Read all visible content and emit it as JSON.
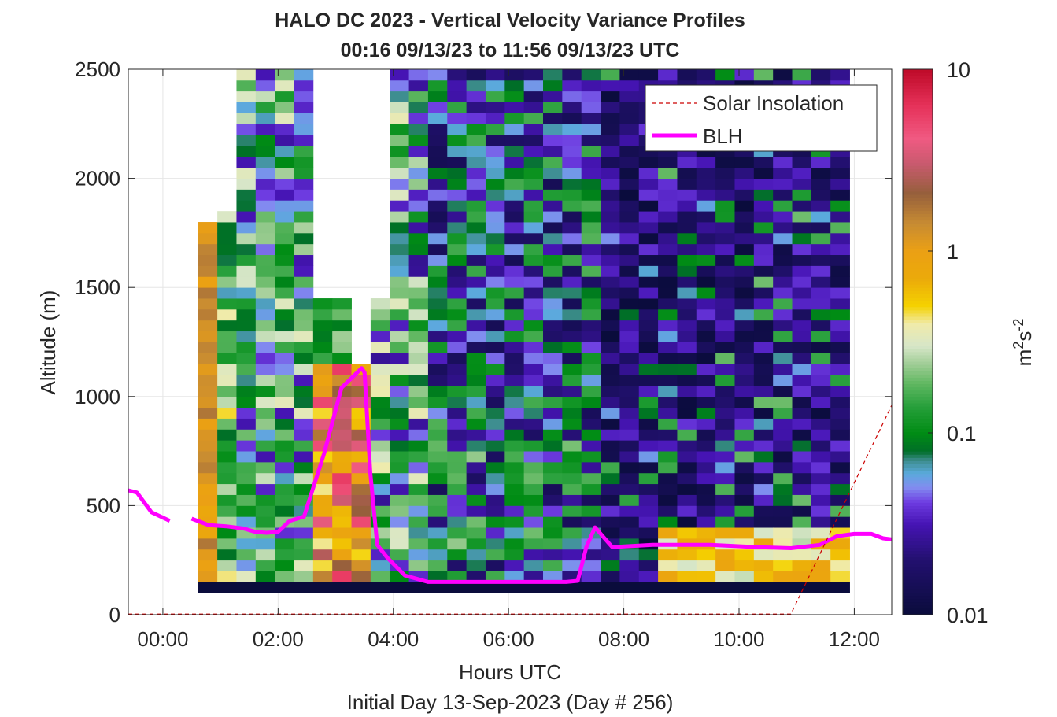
{
  "chart_data": {
    "type": "heatmap",
    "title_line1": "HALO DC 2023 - Vertical Velocity Variance Profiles",
    "title_line2": "00:16 09/13/23 to 11:56 09/13/23  UTC",
    "xlabel": "Hours UTC",
    "xlabel2": "Initial Day 13-Sep-2023 (Day # 256)",
    "ylabel": "Altitude (m)",
    "xlim": [
      -0.6,
      12.65
    ],
    "ylim": [
      0,
      2500
    ],
    "x_ticks": [
      0,
      2,
      4,
      6,
      8,
      10,
      12
    ],
    "x_tick_labels": [
      "00:00",
      "02:00",
      "04:00",
      "06:00",
      "08:00",
      "10:00",
      "12:00"
    ],
    "y_ticks": [
      0,
      500,
      1000,
      1500,
      2000,
      2500
    ],
    "y_tick_labels": [
      "0",
      "500",
      "1000",
      "1500",
      "2000",
      "2500"
    ],
    "grid": true,
    "legend_position": "top-right",
    "colorbar": {
      "label_base": "m",
      "label_sup1": "2",
      "label_mid": "s",
      "label_sup2": "-2",
      "scale": "log",
      "range": [
        0.01,
        10
      ],
      "ticks": [
        0.01,
        0.1,
        1,
        10
      ],
      "tick_labels": [
        "0.01",
        "0.1",
        "1",
        "10"
      ]
    },
    "heatmap": {
      "x_start": 0.28,
      "x_end": 11.92,
      "column_width_hours": 0.3325,
      "bin_height_m": 50,
      "altitude_bottom_m": 100,
      "altitude_top_m": 2500,
      "lowest_bin_m": [
        100,
        150
      ],
      "lowest_bin_value": 0.01,
      "data_gaps": [
        {
          "x": [
            0.28,
            0.61
          ],
          "y": [
            100,
            2500
          ],
          "note": "top above 2500 filled"
        },
        {
          "x": [
            0.61,
            0.94
          ],
          "y": [
            1800,
            2500
          ]
        },
        {
          "x": [
            0.94,
            1.27
          ],
          "y": [
            1830,
            2500
          ]
        },
        {
          "x": [
            2.6,
            3.27
          ],
          "y": [
            1450,
            2500
          ]
        },
        {
          "x": [
            3.27,
            3.6
          ],
          "y": [
            1150,
            2500
          ]
        },
        {
          "x": [
            3.6,
            3.93
          ],
          "y": [
            1420,
            2500
          ]
        }
      ],
      "enhanced_region": {
        "x": [
          2.6,
          3.6
        ],
        "y": [
          150,
          1150
        ],
        "value_range": [
          0.5,
          10
        ]
      },
      "surface_layer_high_values": {
        "x": [
          8.5,
          11.9
        ],
        "y": [
          150,
          400
        ],
        "value_range": [
          0.2,
          1
        ]
      }
    },
    "series": [
      {
        "name": "BLH",
        "color": "#ff00ff",
        "x": [
          -0.6,
          -0.45,
          -0.2,
          0.12,
          0.5,
          0.8,
          1.1,
          1.4,
          1.6,
          1.8,
          2.0,
          2.2,
          2.45,
          2.8,
          3.1,
          3.45,
          3.5,
          3.6,
          3.72,
          3.9,
          4.2,
          4.6,
          5.0,
          6.0,
          7.0,
          7.2,
          7.35,
          7.5,
          7.8,
          8.5,
          9.5,
          10.3,
          10.9,
          11.4,
          11.7,
          12.0,
          12.3,
          12.5,
          12.65
        ],
        "y": [
          570,
          560,
          470,
          430,
          440,
          410,
          405,
          395,
          380,
          375,
          380,
          430,
          450,
          740,
          1040,
          1130,
          1110,
          650,
          320,
          260,
          180,
          150,
          150,
          150,
          150,
          155,
          310,
          400,
          310,
          320,
          320,
          310,
          305,
          320,
          360,
          370,
          370,
          350,
          345
        ],
        "gap_after_x": 0.12
      },
      {
        "name": "Solar Insolation",
        "color": "#cc0000",
        "dash": true,
        "x": [
          -0.6,
          10.9,
          12.65
        ],
        "y": [
          3,
          3,
          960
        ]
      }
    ]
  }
}
